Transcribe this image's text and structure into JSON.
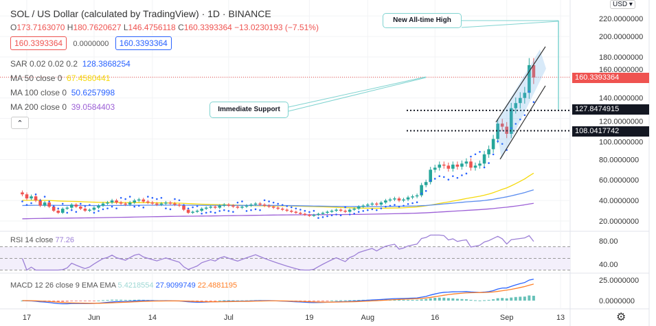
{
  "header": {
    "title": "SOL / US Dollar (calculated by TradingView) · 1D · BINANCE",
    "ohlc": {
      "o_label": "O",
      "o": "173.7163070",
      "h_label": "H",
      "h": "180.7620627",
      "l_label": "L",
      "l": "146.4756118",
      "c_label": "C",
      "c": "160.3393364",
      "change": "−13.0230193 (−7.51%)"
    },
    "bid": "160.3393364",
    "spread": "0.0000000",
    "ask": "160.3393364"
  },
  "indicators": [
    {
      "label": "SAR 0.02 0.02 0.2",
      "value": "128.3868254",
      "color": "#2962ff"
    },
    {
      "label": "MA 50 close 0",
      "value": "67.4580441",
      "color": "#f5d90a"
    },
    {
      "label": "MA 100 close 0",
      "value": "50.6257998",
      "color": "#2962ff"
    },
    {
      "label": "MA 200 close 0",
      "value": "39.0584403",
      "color": "#9c5fd6"
    }
  ],
  "rsi": {
    "label": "RSI 14 close",
    "value": "77.26"
  },
  "macd": {
    "label": "MACD 12 26 close 9 EMA EMA",
    "hist": "5.4218554",
    "macd": "27.9099749",
    "signal": "22.4881195"
  },
  "currency": "USD",
  "collapse_icon": "chevron-up-icon",
  "settings_icon": "gear-icon",
  "annotations": {
    "ath": "New All-time High",
    "support": "Immediate Support"
  },
  "price_labels": {
    "last": "160.3393364",
    "level1": "127.8474915",
    "level2": "108.0417742"
  },
  "colors": {
    "up": "#26a69a",
    "down": "#ef5350",
    "rsi": "#9c7fd6",
    "macd": "#2962ff",
    "signal": "#ff7f27"
  },
  "chart_data": {
    "type": "candlestick",
    "start_date": "2021-05-16",
    "closes": [
      46,
      42,
      44,
      40,
      35,
      38,
      34,
      30,
      28,
      32,
      33,
      36,
      34,
      32,
      30,
      31,
      33,
      35,
      37,
      38,
      40,
      38,
      37,
      36,
      38,
      40,
      41,
      39,
      38,
      37,
      36,
      37,
      38,
      37,
      36,
      35,
      31,
      28,
      29,
      30,
      32,
      33,
      34,
      33,
      35,
      36,
      35,
      34,
      33,
      34,
      35,
      36,
      37,
      36,
      35,
      34,
      33,
      32,
      31,
      30,
      29,
      28,
      27,
      26,
      25,
      26,
      27,
      28,
      29,
      30,
      31,
      30,
      29,
      31,
      32,
      34,
      35,
      36,
      37,
      36,
      38,
      40,
      41,
      42,
      40,
      41,
      43,
      44,
      45,
      55,
      58,
      70,
      72,
      75,
      74,
      71,
      75,
      73,
      76,
      78,
      72,
      74,
      76,
      85,
      90,
      100,
      115,
      112,
      105,
      130,
      135,
      140,
      145,
      172,
      160
    ],
    "price_ticks": [
      "20.0000000",
      "40.0000000",
      "60.0000000",
      "80.0000000",
      "100.0000000",
      "120.0000000",
      "140.0000000",
      "160.0000000",
      "180.0000000",
      "200.0000000",
      "220.0000000"
    ],
    "price_tick_values": [
      20,
      40,
      60,
      80,
      100,
      120,
      140,
      160,
      180,
      200,
      220
    ],
    "rsi_ticks": [
      "40.00",
      "80.00"
    ],
    "rsi_tick_values": [
      40,
      80
    ],
    "macd_ticks": [
      "0.0000000",
      "25.0000000"
    ],
    "macd_tick_values": [
      0,
      25
    ],
    "time_ticks": [
      {
        "label": "17",
        "date": "2021-05-17"
      },
      {
        "label": "Jun",
        "date": "2021-06-01"
      },
      {
        "label": "14",
        "date": "2021-06-14"
      },
      {
        "label": "Jul",
        "date": "2021-07-01"
      },
      {
        "label": "19",
        "date": "2021-07-19"
      },
      {
        "label": "Aug",
        "date": "2021-08-01"
      },
      {
        "label": "16",
        "date": "2021-08-16"
      },
      {
        "label": "Sep",
        "date": "2021-09-01"
      },
      {
        "label": "13",
        "date": "2021-09-13"
      }
    ],
    "support_levels": [
      127.8474915,
      108.0417742
    ]
  }
}
